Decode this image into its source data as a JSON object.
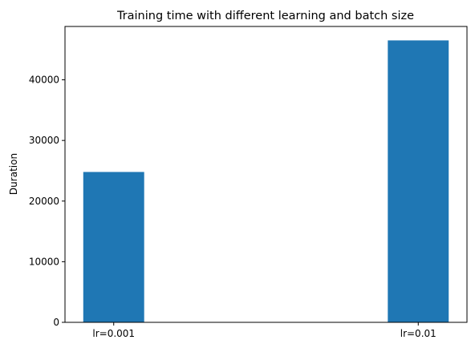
{
  "chart_data": {
    "type": "bar",
    "title": "Training time with different learning and batch size",
    "xlabel": "",
    "ylabel": "Duration",
    "categories": [
      "lr=0.001",
      "lr=0.01"
    ],
    "values": [
      24800,
      46500
    ],
    "ylim": [
      0,
      48800
    ],
    "yticks": [
      0,
      10000,
      20000,
      30000,
      40000
    ],
    "grid": false,
    "legend": "none",
    "bar_color": "#1f77b4"
  }
}
